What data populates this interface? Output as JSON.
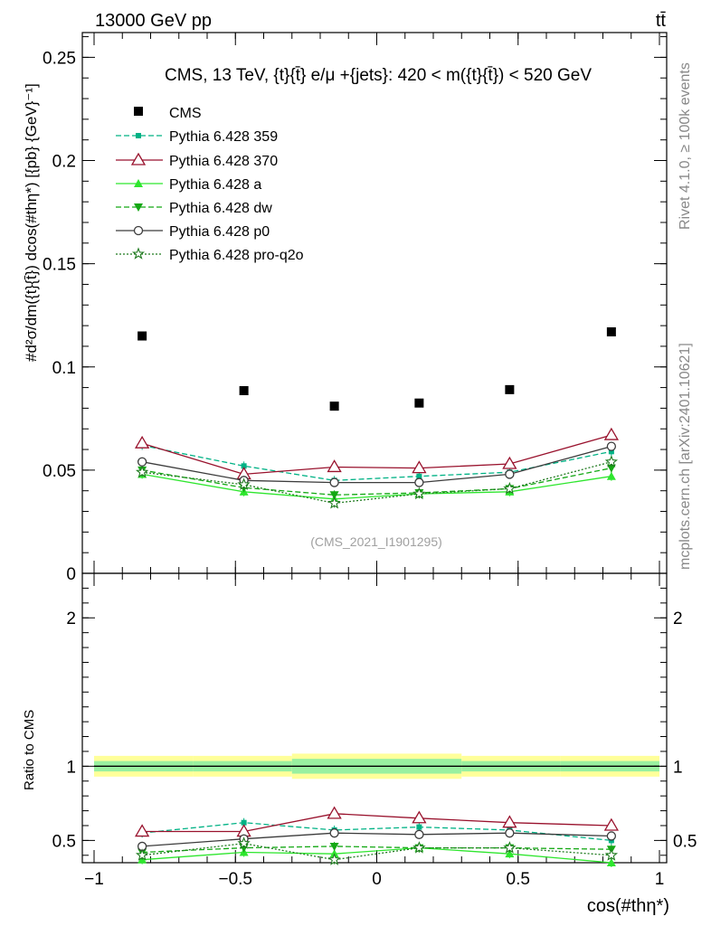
{
  "header": {
    "left": "13000 GeV pp",
    "right": "tt̄"
  },
  "side_labels": {
    "rivet": "Rivet 4.1.0, ≥ 100k events",
    "mcplots": "mcplots.cern.ch [arXiv:2401.10621]"
  },
  "chart_data": {
    "type": "scatter",
    "title": "CMS, 13 TeV, {t}{t̄} e/μ +{jets}: 420 < m({t}{t̄}) < 520 GeV",
    "watermark": "(CMS_2021_I1901295)",
    "xlabel": "cos(#thη*)",
    "ylabel_main": "#d²σ/dm({t}{t̄}) dcos(#thη*) [{pb} {GeV}⁻¹]",
    "ylabel_ratio": "Ratio to CMS",
    "xlim": [
      -1,
      1
    ],
    "ylim_main": [
      0,
      0.262
    ],
    "ylim_ratio": [
      0.35,
      2.3
    ],
    "x_ticks": [
      "−1",
      "−0.5",
      "0",
      "0.5",
      "1"
    ],
    "x_tick_values": [
      -1,
      -0.5,
      0,
      0.5,
      1
    ],
    "y_ticks_main": [
      "0",
      "0.05",
      "0.1",
      "0.15",
      "0.2",
      "0.25"
    ],
    "y_tick_values_main": [
      0,
      0.05,
      0.1,
      0.15,
      0.2,
      0.25
    ],
    "y_ticks_ratio": [
      "0.5",
      "1",
      "2"
    ],
    "y_tick_values_ratio": [
      0.5,
      1,
      2
    ],
    "bins": [
      -1,
      -0.65,
      -0.3,
      0,
      0.3,
      0.65,
      1
    ],
    "x": [
      -0.83,
      -0.47,
      -0.15,
      0.15,
      0.47,
      0.83
    ],
    "data": {
      "name": "CMS",
      "values": [
        0.115,
        0.0885,
        0.081,
        0.0825,
        0.089,
        0.117
      ],
      "ratio_band_inner": [
        0.035,
        0.035,
        0.05,
        0.05,
        0.035,
        0.035
      ],
      "ratio_band_outer": [
        0.07,
        0.07,
        0.085,
        0.085,
        0.07,
        0.07
      ]
    },
    "series": [
      {
        "name": "Pythia 6.428 359",
        "color": "#00b285",
        "dash": "6,3",
        "marker": "square-small",
        "values": [
          0.062,
          0.052,
          0.045,
          0.047,
          0.049,
          0.059
        ],
        "ratio": [
          0.55,
          0.62,
          0.57,
          0.59,
          0.57,
          0.5
        ]
      },
      {
        "name": "Pythia 6.428 370",
        "color": "#99122d",
        "dash": "",
        "marker": "triangle-open",
        "values": [
          0.063,
          0.048,
          0.0515,
          0.051,
          0.053,
          0.067
        ],
        "ratio": [
          0.56,
          0.56,
          0.68,
          0.65,
          0.62,
          0.6
        ]
      },
      {
        "name": "Pythia 6.428 a",
        "color": "#2ee62e",
        "dash": "",
        "marker": "triangle-filled",
        "values": [
          0.048,
          0.0395,
          0.036,
          0.0385,
          0.0395,
          0.047
        ],
        "ratio": [
          0.37,
          0.42,
          0.41,
          0.45,
          0.41,
          0.35
        ]
      },
      {
        "name": "Pythia 6.428 dw",
        "color": "#14a814",
        "dash": "6,3",
        "marker": "triangle-down",
        "values": [
          0.05,
          0.0415,
          0.038,
          0.039,
          0.041,
          0.051
        ],
        "ratio": [
          0.42,
          0.45,
          0.46,
          0.45,
          0.45,
          0.44
        ]
      },
      {
        "name": "Pythia 6.428 p0",
        "color": "#3c3c3c",
        "dash": "",
        "marker": "circle-open",
        "values": [
          0.054,
          0.045,
          0.044,
          0.044,
          0.048,
          0.0615
        ],
        "ratio": [
          0.46,
          0.51,
          0.55,
          0.54,
          0.55,
          0.53
        ]
      },
      {
        "name": "Pythia 6.428 pro-q2o",
        "color": "#1f7a1f",
        "dash": "2,2",
        "marker": "star-open",
        "values": [
          0.049,
          0.043,
          0.034,
          0.0385,
          0.041,
          0.054
        ],
        "ratio": [
          0.4,
          0.48,
          0.37,
          0.45,
          0.45,
          0.4
        ]
      }
    ]
  }
}
